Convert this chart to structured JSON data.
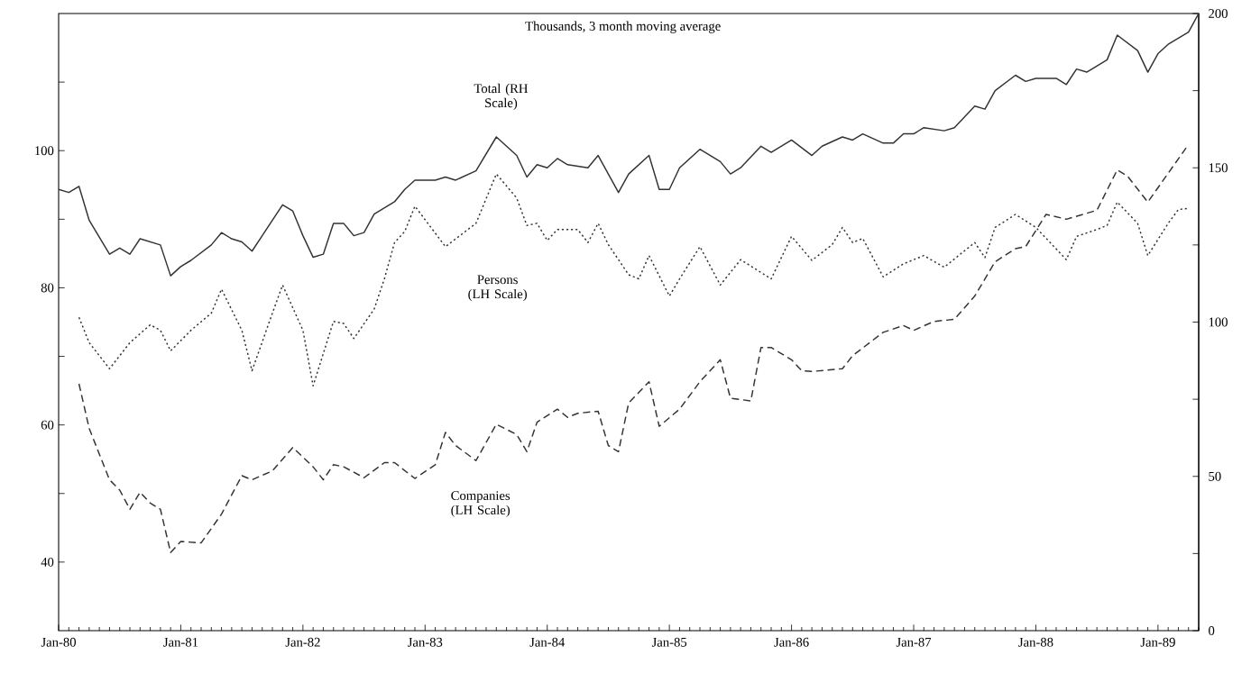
{
  "chart_data": {
    "type": "line",
    "subtitle": "Thousands, 3 month moving average",
    "marker": "none",
    "xlim": [
      "1980-01",
      "1989-05"
    ],
    "ylim": [
      30,
      120
    ],
    "y2lim": [
      0,
      200
    ],
    "yticks": [
      40,
      60,
      80,
      100,
      {
        "value": 50,
        "label": null
      },
      {
        "value": 70,
        "label": null
      },
      {
        "value": 90,
        "label": null
      },
      {
        "value": 110,
        "label": null
      }
    ],
    "y2ticks": [
      0,
      50,
      100,
      150,
      200,
      {
        "value": 25,
        "label": null
      },
      {
        "value": 75,
        "label": null
      },
      {
        "value": 125,
        "label": null
      },
      {
        "value": 175,
        "label": null
      }
    ],
    "xticks": [
      {
        "value": "1980-01",
        "label": "Jan-80"
      },
      {
        "value": "1981-01",
        "label": "Jan-81"
      },
      {
        "value": "1982-01",
        "label": "Jan-82"
      },
      {
        "value": "1983-01",
        "label": "Jan-83"
      },
      {
        "value": "1984-01",
        "label": "Jan-84"
      },
      {
        "value": "1985-01",
        "label": "Jan-85"
      },
      {
        "value": "1986-01",
        "label": "Jan-86"
      },
      {
        "value": "1987-01",
        "label": "Jan-87"
      },
      {
        "value": "1988-01",
        "label": "Jan-88"
      },
      {
        "value": "1989-01",
        "label": "Jan-89"
      },
      {
        "value": "1980-02",
        "label": null
      },
      {
        "value": "1980-03",
        "label": null
      },
      {
        "value": "1980-04",
        "label": null
      },
      {
        "value": "1980-05",
        "label": null
      },
      {
        "value": "1980-06",
        "label": null
      },
      {
        "value": "1980-07",
        "label": null
      },
      {
        "value": "1980-08",
        "label": null
      },
      {
        "value": "1980-09",
        "label": null
      },
      {
        "value": "1980-10",
        "label": null
      },
      {
        "value": "1980-11",
        "label": null
      },
      {
        "value": "1980-12",
        "label": null
      },
      {
        "value": "1981-02",
        "label": null
      },
      {
        "value": "1981-03",
        "label": null
      },
      {
        "value": "1981-04",
        "label": null
      },
      {
        "value": "1981-05",
        "label": null
      },
      {
        "value": "1981-06",
        "label": null
      },
      {
        "value": "1981-07",
        "label": null
      },
      {
        "value": "1981-08",
        "label": null
      },
      {
        "value": "1981-09",
        "label": null
      },
      {
        "value": "1981-10",
        "label": null
      },
      {
        "value": "1981-11",
        "label": null
      },
      {
        "value": "1981-12",
        "label": null
      },
      {
        "value": "1982-02",
        "label": null
      },
      {
        "value": "1982-03",
        "label": null
      },
      {
        "value": "1982-04",
        "label": null
      },
      {
        "value": "1982-05",
        "label": null
      },
      {
        "value": "1982-06",
        "label": null
      },
      {
        "value": "1982-07",
        "label": null
      },
      {
        "value": "1982-08",
        "label": null
      },
      {
        "value": "1982-09",
        "label": null
      },
      {
        "value": "1982-10",
        "label": null
      },
      {
        "value": "1982-11",
        "label": null
      },
      {
        "value": "1982-12",
        "label": null
      },
      {
        "value": "1983-02",
        "label": null
      },
      {
        "value": "1983-03",
        "label": null
      },
      {
        "value": "1983-04",
        "label": null
      },
      {
        "value": "1983-05",
        "label": null
      },
      {
        "value": "1983-06",
        "label": null
      },
      {
        "value": "1983-07",
        "label": null
      },
      {
        "value": "1983-08",
        "label": null
      },
      {
        "value": "1983-09",
        "label": null
      },
      {
        "value": "1983-10",
        "label": null
      },
      {
        "value": "1983-11",
        "label": null
      },
      {
        "value": "1983-12",
        "label": null
      },
      {
        "value": "1984-02",
        "label": null
      },
      {
        "value": "1984-03",
        "label": null
      },
      {
        "value": "1984-04",
        "label": null
      },
      {
        "value": "1984-05",
        "label": null
      },
      {
        "value": "1984-06",
        "label": null
      },
      {
        "value": "1984-07",
        "label": null
      },
      {
        "value": "1984-08",
        "label": null
      },
      {
        "value": "1984-09",
        "label": null
      },
      {
        "value": "1984-10",
        "label": null
      },
      {
        "value": "1984-11",
        "label": null
      },
      {
        "value": "1984-12",
        "label": null
      },
      {
        "value": "1985-02",
        "label": null
      },
      {
        "value": "1985-03",
        "label": null
      },
      {
        "value": "1985-04",
        "label": null
      },
      {
        "value": "1985-05",
        "label": null
      },
      {
        "value": "1985-06",
        "label": null
      },
      {
        "value": "1985-07",
        "label": null
      },
      {
        "value": "1985-08",
        "label": null
      },
      {
        "value": "1985-09",
        "label": null
      },
      {
        "value": "1985-10",
        "label": null
      },
      {
        "value": "1985-11",
        "label": null
      },
      {
        "value": "1985-12",
        "label": null
      },
      {
        "value": "1986-02",
        "label": null
      },
      {
        "value": "1986-03",
        "label": null
      },
      {
        "value": "1986-04",
        "label": null
      },
      {
        "value": "1986-05",
        "label": null
      },
      {
        "value": "1986-06",
        "label": null
      },
      {
        "value": "1986-07",
        "label": null
      },
      {
        "value": "1986-08",
        "label": null
      },
      {
        "value": "1986-09",
        "label": null
      },
      {
        "value": "1986-10",
        "label": null
      },
      {
        "value": "1986-11",
        "label": null
      },
      {
        "value": "1986-12",
        "label": null
      },
      {
        "value": "1987-02",
        "label": null
      },
      {
        "value": "1987-03",
        "label": null
      },
      {
        "value": "1987-04",
        "label": null
      },
      {
        "value": "1987-05",
        "label": null
      },
      {
        "value": "1987-06",
        "label": null
      },
      {
        "value": "1987-07",
        "label": null
      },
      {
        "value": "1987-08",
        "label": null
      },
      {
        "value": "1987-09",
        "label": null
      },
      {
        "value": "1987-10",
        "label": null
      },
      {
        "value": "1987-11",
        "label": null
      },
      {
        "value": "1987-12",
        "label": null
      },
      {
        "value": "1988-02",
        "label": null
      },
      {
        "value": "1988-03",
        "label": null
      },
      {
        "value": "1988-04",
        "label": null
      },
      {
        "value": "1988-05",
        "label": null
      },
      {
        "value": "1988-06",
        "label": null
      },
      {
        "value": "1988-07",
        "label": null
      },
      {
        "value": "1988-08",
        "label": null
      },
      {
        "value": "1988-09",
        "label": null
      },
      {
        "value": "1988-10",
        "label": null
      },
      {
        "value": "1988-11",
        "label": null
      },
      {
        "value": "1988-12",
        "label": null
      },
      {
        "value": "1989-02",
        "label": null
      },
      {
        "value": "1989-03",
        "label": null
      },
      {
        "value": "1989-04",
        "label": null
      },
      {
        "value": "1989-05",
        "label": null
      }
    ],
    "series": [
      {
        "name": "Total (RH Scale)",
        "axis": "y2",
        "color": "#333333",
        "line_style": "solid",
        "x": [
          "1980-01",
          "1980-02",
          "1980-03",
          "1980-04",
          "1980-06",
          "1980-07",
          "1980-08",
          "1980-09",
          "1980-10",
          "1980-11",
          "1980-12",
          "1981-01",
          "1981-02",
          "1981-04",
          "1981-05",
          "1981-06",
          "1981-07",
          "1981-08",
          "1981-09",
          "1981-11",
          "1981-12",
          "1982-01",
          "1982-02",
          "1982-03",
          "1982-04",
          "1982-05",
          "1982-06",
          "1982-07",
          "1982-08",
          "1982-10",
          "1982-11",
          "1982-12",
          "1983-02",
          "1983-03",
          "1983-04",
          "1983-06",
          "1983-08",
          "1983-10",
          "1983-11",
          "1983-12",
          "1984-01",
          "1984-02",
          "1984-03",
          "1984-05",
          "1984-06",
          "1984-08",
          "1984-09",
          "1984-11",
          "1984-12",
          "1985-01",
          "1985-02",
          "1985-04",
          "1985-06",
          "1985-07",
          "1985-08",
          "1985-10",
          "1985-11",
          "1986-01",
          "1986-03",
          "1986-04",
          "1986-06",
          "1986-07",
          "1986-08",
          "1986-10",
          "1986-11",
          "1986-12",
          "1987-01",
          "1987-02",
          "1987-04",
          "1987-05",
          "1987-07",
          "1987-08",
          "1987-09",
          "1987-11",
          "1987-12",
          "1988-01",
          "1988-03",
          "1988-04",
          "1988-05",
          "1988-06",
          "1988-08",
          "1988-09",
          "1988-11",
          "1988-12",
          "1989-01",
          "1989-02",
          "1989-04",
          "1989-05"
        ],
        "values": [
          143,
          142,
          144,
          133,
          122,
          124,
          122,
          127,
          126,
          125,
          115,
          118,
          120,
          125,
          129,
          127,
          126,
          123,
          128,
          138,
          136,
          128,
          121,
          122,
          132,
          132,
          128,
          129,
          135,
          139,
          143,
          146,
          146,
          147,
          146,
          149,
          160,
          154,
          147,
          151,
          150,
          153,
          151,
          150,
          154,
          142,
          148,
          154,
          143,
          143,
          150,
          156,
          152,
          148,
          150,
          157,
          155,
          159,
          154,
          157,
          160,
          159,
          161,
          158,
          158,
          161,
          161,
          163,
          162,
          163,
          170,
          169,
          175,
          180,
          178,
          179,
          179,
          177,
          182,
          181,
          185,
          193,
          188,
          181,
          187,
          190,
          194,
          200
        ]
      },
      {
        "name": "Persons (LH Scale)",
        "color": "#333333",
        "line_style": "dotted",
        "x": [
          "1980-03",
          "1980-04",
          "1980-06",
          "1980-08",
          "1980-10",
          "1980-11",
          "1980-12",
          "1981-02",
          "1981-04",
          "1981-05",
          "1981-07",
          "1981-08",
          "1981-10",
          "1981-11",
          "1982-01",
          "1982-02",
          "1982-04",
          "1982-05",
          "1982-06",
          "1982-08",
          "1982-09",
          "1982-10",
          "1982-11",
          "1982-12",
          "1983-03",
          "1983-06",
          "1983-08",
          "1983-10",
          "1983-11",
          "1983-12",
          "1984-01",
          "1984-02",
          "1984-04",
          "1984-05",
          "1984-06",
          "1984-07",
          "1984-09",
          "1984-10",
          "1984-11",
          "1985-01",
          "1985-02",
          "1985-04",
          "1985-06",
          "1985-08",
          "1985-11",
          "1986-01",
          "1986-03",
          "1986-05",
          "1986-06",
          "1986-07",
          "1986-08",
          "1986-10",
          "1986-12",
          "1987-02",
          "1987-04",
          "1987-07",
          "1987-08",
          "1987-09",
          "1987-11",
          "1988-01",
          "1988-04",
          "1988-05",
          "1988-07",
          "1988-08",
          "1988-09",
          "1988-11",
          "1988-12",
          "1989-02",
          "1989-03",
          "1989-04"
        ],
        "values": [
          75.7,
          72,
          68.2,
          72,
          74.6,
          73.8,
          70.8,
          73.8,
          76.3,
          79.8,
          73.8,
          67.9,
          76.3,
          80.4,
          73.8,
          65.7,
          75.1,
          74.8,
          72.6,
          76.9,
          81.3,
          86.6,
          88.2,
          91.9,
          86,
          89.4,
          96.6,
          93.1,
          89.1,
          89.4,
          86.9,
          88.5,
          88.5,
          86.6,
          89.4,
          86.3,
          81.9,
          81.3,
          84.7,
          78.8,
          81.3,
          86,
          80.4,
          84.1,
          81.3,
          87.5,
          84,
          86.3,
          88.8,
          86.6,
          87.2,
          81.6,
          83.5,
          84.7,
          83,
          86.6,
          84.4,
          88.8,
          90.7,
          88.8,
          84.1,
          87.5,
          88.5,
          89.1,
          92.5,
          89.4,
          84.7,
          89.4,
          91.4,
          91.6
        ]
      },
      {
        "name": "Companies (LH Scale)",
        "color": "#333333",
        "line_style": "dashed",
        "x": [
          "1980-03",
          "1980-04",
          "1980-06",
          "1980-07",
          "1980-08",
          "1980-09",
          "1980-10",
          "1980-11",
          "1980-12",
          "1981-01",
          "1981-03",
          "1981-05",
          "1981-07",
          "1981-08",
          "1981-10",
          "1981-12",
          "1982-02",
          "1982-03",
          "1982-04",
          "1982-05",
          "1982-07",
          "1982-09",
          "1982-10",
          "1982-12",
          "1983-02",
          "1983-03",
          "1983-04",
          "1983-06",
          "1983-08",
          "1983-10",
          "1983-11",
          "1983-12",
          "1984-02",
          "1984-03",
          "1984-04",
          "1984-06",
          "1984-07",
          "1984-08",
          "1984-09",
          "1984-11",
          "1984-12",
          "1985-02",
          "1985-04",
          "1985-06",
          "1985-07",
          "1985-09",
          "1985-10",
          "1985-11",
          "1986-01",
          "1986-02",
          "1986-03",
          "1986-06",
          "1986-07",
          "1986-10",
          "1986-12",
          "1987-01",
          "1987-03",
          "1987-05",
          "1987-07",
          "1987-09",
          "1987-11",
          "1987-12",
          "1988-02",
          "1988-04",
          "1988-07",
          "1988-09",
          "1988-10",
          "1988-12",
          "1989-03",
          "1989-04"
        ],
        "values": [
          66,
          59.5,
          52,
          50.5,
          47.7,
          50.2,
          48.6,
          47.7,
          41.4,
          43,
          42.8,
          47,
          52.6,
          52,
          53.3,
          56.7,
          53.9,
          52,
          54.2,
          53.9,
          52.3,
          54.5,
          54.5,
          52.2,
          54.2,
          58.9,
          57,
          54.8,
          60.1,
          58.6,
          56.1,
          60.4,
          62.3,
          61.1,
          61.7,
          62,
          57,
          56.1,
          63.2,
          66.3,
          59.8,
          62.3,
          66.3,
          69.5,
          63.9,
          63.5,
          71.3,
          71.3,
          69.5,
          67.9,
          67.8,
          68.2,
          70.1,
          73.5,
          74.5,
          73.8,
          75.1,
          75.4,
          78.8,
          83.8,
          85.7,
          86,
          90.7,
          90,
          91.3,
          97.2,
          96.3,
          92.5,
          98.8,
          100.9
        ]
      }
    ]
  }
}
